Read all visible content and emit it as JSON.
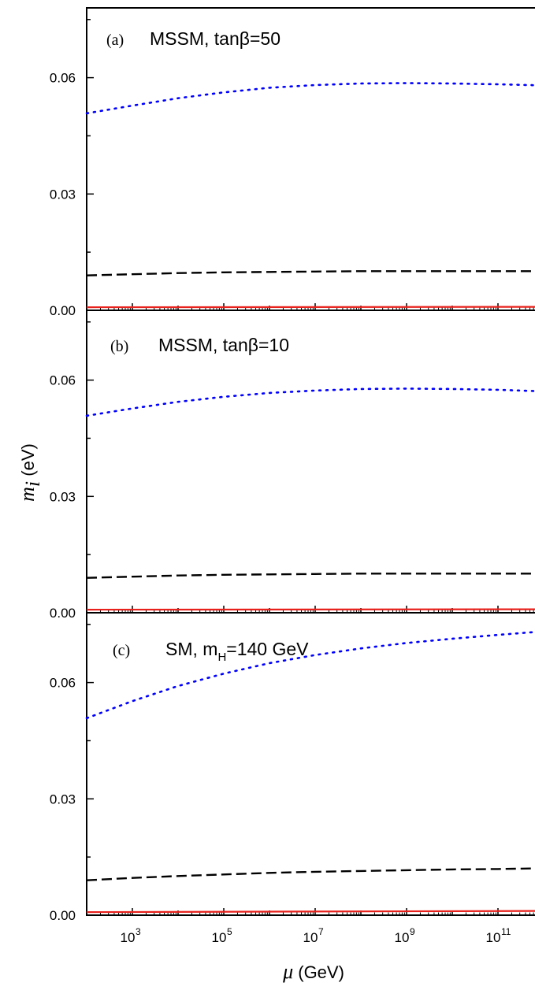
{
  "chart_data": [
    {
      "type": "line",
      "panel_tag": "(a)",
      "panel_title": "MSSM, tanβ=50",
      "x_scale": "log10",
      "xlim": [
        100,
        1000000000000
      ],
      "ylim": [
        0,
        0.078
      ],
      "yticks": [
        0.0,
        0.03,
        0.06
      ],
      "ytick_labels": [
        "0.00",
        "0.03",
        "0.06"
      ],
      "grid": false,
      "series": [
        {
          "style": "dotted",
          "color": "#0000ff",
          "x": [
            100,
            1000,
            10000,
            100000,
            1000000,
            10000000,
            100000000,
            1000000000,
            10000000000,
            100000000000,
            1000000000000
          ],
          "values": [
            0.0508,
            0.0528,
            0.0547,
            0.0562,
            0.0574,
            0.0581,
            0.0585,
            0.0586,
            0.0585,
            0.0583,
            0.058
          ]
        },
        {
          "style": "dashed",
          "color": "#000000",
          "x": [
            100,
            1000,
            10000,
            100000,
            1000000,
            10000000,
            100000000,
            1000000000,
            10000000000,
            100000000000,
            1000000000000
          ],
          "values": [
            0.009,
            0.0093,
            0.0096,
            0.0098,
            0.0099,
            0.01,
            0.0101,
            0.0101,
            0.0101,
            0.0101,
            0.0101
          ]
        },
        {
          "style": "solid",
          "color": "#e8211c",
          "x": [
            100,
            1000000000000
          ],
          "values": [
            0.0008,
            0.0009
          ]
        }
      ]
    },
    {
      "type": "line",
      "panel_tag": "(b)",
      "panel_title": "MSSM, tanβ=10",
      "x_scale": "log10",
      "xlim": [
        100,
        1000000000000
      ],
      "ylim": [
        0,
        0.078
      ],
      "yticks": [
        0.0,
        0.03,
        0.06
      ],
      "ytick_labels": [
        "0.00",
        "0.03",
        "0.06"
      ],
      "grid": false,
      "series": [
        {
          "style": "dotted",
          "color": "#0000ff",
          "x": [
            100,
            1000,
            10000,
            100000,
            1000000,
            10000000,
            100000000,
            1000000000,
            10000000000,
            100000000000,
            1000000000000
          ],
          "values": [
            0.0508,
            0.0527,
            0.0544,
            0.0557,
            0.0567,
            0.0573,
            0.0577,
            0.0578,
            0.0577,
            0.0575,
            0.0571
          ]
        },
        {
          "style": "dashed",
          "color": "#000000",
          "x": [
            100,
            1000,
            10000,
            100000,
            1000000,
            10000000,
            100000000,
            1000000000,
            10000000000,
            100000000000,
            1000000000000
          ],
          "values": [
            0.009,
            0.0093,
            0.0096,
            0.0098,
            0.0099,
            0.01,
            0.0101,
            0.0101,
            0.0101,
            0.0101,
            0.0101
          ]
        },
        {
          "style": "solid",
          "color": "#e8211c",
          "x": [
            100,
            1000000000000
          ],
          "values": [
            0.0008,
            0.0009
          ]
        }
      ]
    },
    {
      "type": "line",
      "panel_tag": "(c)",
      "panel_title_main": "SM, m",
      "panel_title_sub": "H",
      "panel_title_rest": "=140 GeV",
      "x_scale": "log10",
      "xlim": [
        100,
        1000000000000
      ],
      "ylim": [
        0,
        0.078
      ],
      "yticks": [
        0.0,
        0.03,
        0.06
      ],
      "ytick_labels": [
        "0.00",
        "0.03",
        "0.06"
      ],
      "xticks": [
        1000,
        100000,
        10000000,
        1000000000,
        100000000000
      ],
      "xtick_bases": [
        "10",
        "10",
        "10",
        "10",
        "10"
      ],
      "xtick_exps": [
        "3",
        "5",
        "7",
        "9",
        "11"
      ],
      "grid": false,
      "series": [
        {
          "style": "dotted",
          "color": "#0000ff",
          "x": [
            100,
            1000,
            10000,
            100000,
            1000000,
            10000000,
            100000000,
            1000000000,
            10000000000,
            100000000000,
            1000000000000
          ],
          "values": [
            0.0508,
            0.0552,
            0.0591,
            0.0623,
            0.065,
            0.0671,
            0.0688,
            0.0702,
            0.0713,
            0.0723,
            0.0732
          ]
        },
        {
          "style": "dashed",
          "color": "#000000",
          "x": [
            100,
            1000,
            10000,
            100000,
            1000000,
            10000000,
            100000000,
            1000000000,
            10000000000,
            100000000000,
            1000000000000
          ],
          "values": [
            0.009,
            0.0096,
            0.0101,
            0.0105,
            0.0109,
            0.0112,
            0.0114,
            0.0116,
            0.0118,
            0.0119,
            0.0121
          ]
        },
        {
          "style": "solid",
          "color": "#e8211c",
          "x": [
            100,
            1000000000000
          ],
          "values": [
            0.0008,
            0.0011
          ]
        }
      ]
    }
  ],
  "axes": {
    "ylabel_symbol": "m",
    "ylabel_sub": "i",
    "ylabel_unit": " (eV)",
    "xlabel_symbol": "μ",
    "xlabel_unit": " (GeV)"
  }
}
